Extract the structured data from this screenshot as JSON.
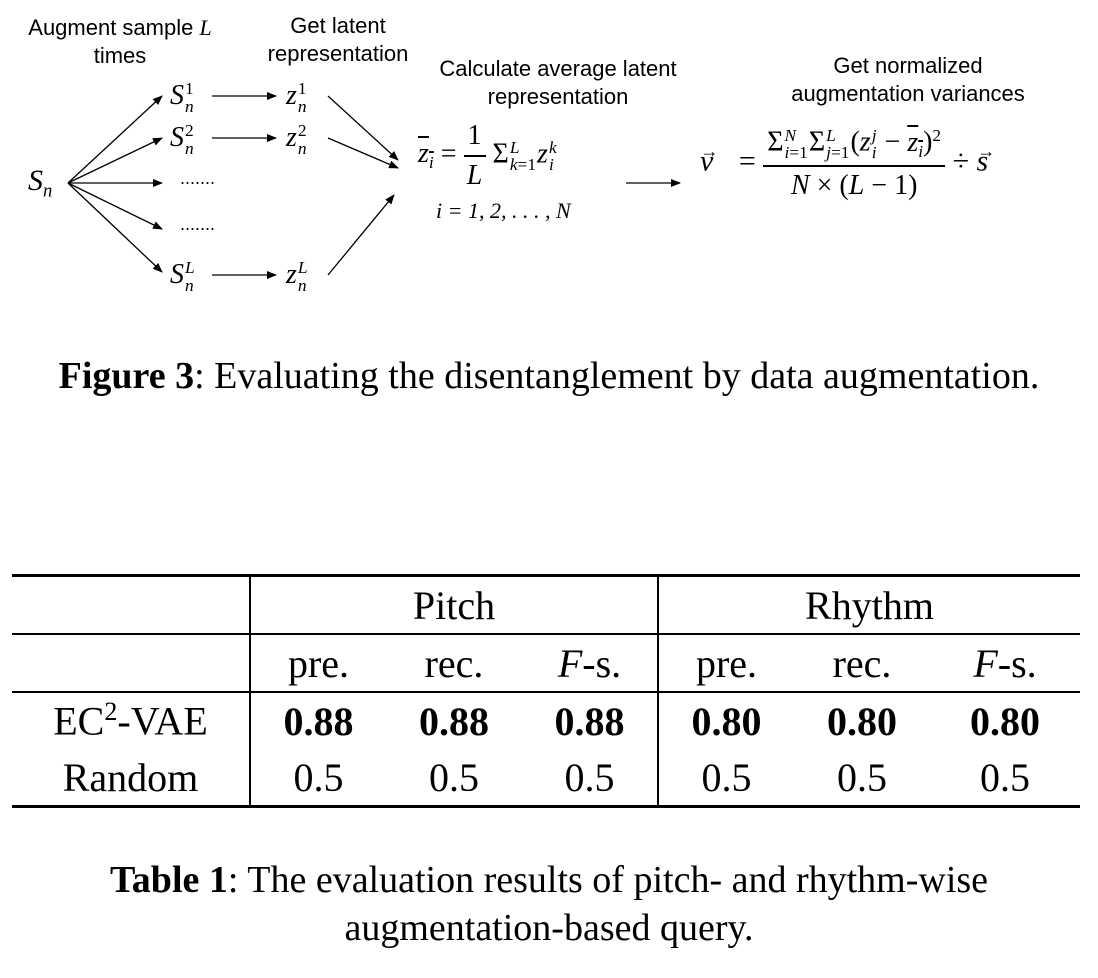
{
  "figure": {
    "step1_label": "Augment sample",
    "step1_var": "L",
    "step1_label2": "times",
    "step2_label": "Get latent representation",
    "step3_label": "Calculate average latent representation",
    "step4_label": "Get normalized augmentation variances",
    "sample": "S",
    "sample_sub": "n",
    "augmented": [
      {
        "base": "S",
        "sub": "n",
        "sup": "1"
      },
      {
        "base": "S",
        "sub": "n",
        "sup": "2"
      },
      {
        "base": "S",
        "sub": "n",
        "sup": "L"
      }
    ],
    "latents": [
      {
        "base": "z",
        "sub": "n",
        "sup": "1"
      },
      {
        "base": "z",
        "sub": "n",
        "sup": "2"
      },
      {
        "base": "z",
        "sub": "n",
        "sup": "L"
      }
    ],
    "ellipsis": ".......",
    "index_range": "i = 1, 2, . . . , N",
    "caption_label": "Figure 3",
    "caption_text": ": Evaluating the disentanglement by data augmentation."
  },
  "table": {
    "groups": [
      "Pitch",
      "Rhythm"
    ],
    "metrics": [
      "pre.",
      "rec.",
      "-s."
    ],
    "metric_f": "F",
    "rows": [
      {
        "name": "EC",
        "name_sup": "2",
        "name_suffix": "-VAE",
        "values": [
          "0.88",
          "0.88",
          "0.88",
          "0.80",
          "0.80",
          "0.80"
        ],
        "bold": true
      },
      {
        "name": "Random",
        "name_sup": "",
        "name_suffix": "",
        "values": [
          "0.5",
          "0.5",
          "0.5",
          "0.5",
          "0.5",
          "0.5"
        ],
        "bold": false
      }
    ],
    "caption_label": "Table 1",
    "caption_text": ": The evaluation results of pitch- and rhythm-wise augmentation-based query."
  }
}
